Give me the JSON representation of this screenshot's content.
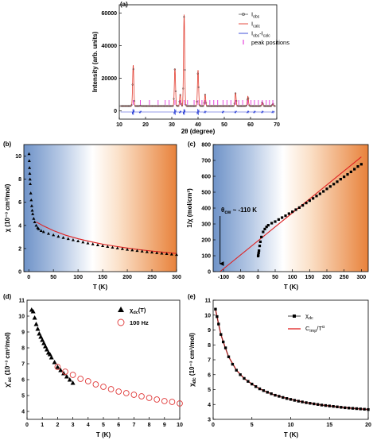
{
  "chart_data": [
    {
      "panel": "(a)",
      "type": "line",
      "xlabel": "2θ (degree)",
      "ylabel": "Intensity (arb. units)",
      "xlim": [
        10,
        70
      ],
      "ylim": [
        -5000,
        65000
      ],
      "xticks": [
        "10",
        "20",
        "30",
        "40",
        "50",
        "60",
        "70"
      ],
      "yticks": [
        "0",
        "20000",
        "40000",
        "60000"
      ],
      "legend": [
        "I_obs",
        "I_calc",
        "I_obs-I_calc",
        "peak positions"
      ],
      "legend_display": {
        "obs": "I",
        "obs_sub": "obs",
        "calc": "I",
        "calc_sub": "calc",
        "diff": "I",
        "diff_sub": "obs",
        "diff_tail": "-I",
        "diff_sub2": "calc",
        "peaks": "peak positions"
      },
      "legend_position": "top-right",
      "peaks": [
        {
          "x": 15.3,
          "y": 28000
        },
        {
          "x": 18.0,
          "y": 3200
        },
        {
          "x": 31.2,
          "y": 26000
        },
        {
          "x": 33.2,
          "y": 10000
        },
        {
          "x": 34.7,
          "y": 59000
        },
        {
          "x": 40.0,
          "y": 25000
        },
        {
          "x": 42.7,
          "y": 10000
        },
        {
          "x": 49.5,
          "y": 3000
        },
        {
          "x": 54.3,
          "y": 11000
        },
        {
          "x": 59.0,
          "y": 9000
        },
        {
          "x": 61.5,
          "y": 3000
        },
        {
          "x": 64.5,
          "y": 5500
        },
        {
          "x": 68.5,
          "y": 4500
        }
      ],
      "background": 3000,
      "bragg_positions": [
        15.3,
        18.0,
        21.5,
        24.8,
        27.5,
        29.0,
        31.2,
        33.2,
        34.7,
        36.0,
        38.5,
        40.0,
        41.5,
        42.7,
        44.5,
        46.0,
        47.5,
        49.5,
        51.0,
        52.5,
        54.3,
        55.5,
        57.0,
        59.0,
        60.2,
        61.5,
        63.0,
        64.5,
        66.0,
        67.2,
        68.5
      ]
    },
    {
      "panel": "(b)",
      "type": "scatter",
      "xlabel": "T (K)",
      "ylabel": "χ (10⁻³ cm³/mol)",
      "xlim": [
        -10,
        300
      ],
      "ylim": [
        0,
        11
      ],
      "xticks": [
        "0",
        "50",
        "100",
        "150",
        "200",
        "250",
        "300"
      ],
      "yticks": [
        "0",
        "2",
        "4",
        "6",
        "8",
        "10"
      ],
      "background": "blue-to-orange gradient",
      "series": [
        {
          "kind": "data",
          "x": [
            0.5,
            1,
            1.5,
            2,
            2.5,
            3,
            4,
            5,
            6,
            7,
            8,
            10,
            12,
            15,
            18,
            20,
            25,
            30,
            40,
            50,
            60,
            70,
            80,
            90,
            100,
            110,
            120,
            130,
            140,
            150,
            160,
            170,
            180,
            190,
            200,
            210,
            220,
            230,
            240,
            250,
            260,
            270,
            280,
            290,
            300
          ],
          "y": [
            10.2,
            9.6,
            9.0,
            8.5,
            8.0,
            7.6,
            6.8,
            6.2,
            5.7,
            5.3,
            5.0,
            4.6,
            4.3,
            4.0,
            3.8,
            3.7,
            3.55,
            3.45,
            3.3,
            3.18,
            3.05,
            2.95,
            2.85,
            2.75,
            2.65,
            2.56,
            2.47,
            2.39,
            2.31,
            2.24,
            2.17,
            2.1,
            2.04,
            1.98,
            1.92,
            1.87,
            1.82,
            1.77,
            1.72,
            1.68,
            1.63,
            1.59,
            1.55,
            1.51,
            1.48
          ]
        },
        {
          "kind": "fit",
          "x": [
            15,
            30,
            50,
            75,
            100,
            125,
            150,
            175,
            200,
            225,
            250,
            275,
            300
          ],
          "y": [
            4.3,
            3.95,
            3.55,
            3.15,
            2.85,
            2.6,
            2.38,
            2.2,
            2.04,
            1.9,
            1.78,
            1.67,
            1.57
          ]
        }
      ]
    },
    {
      "panel": "(c)",
      "type": "scatter",
      "xlabel": "T (K)",
      "ylabel": "1/χ (mol/cm³)",
      "xlim": [
        -130,
        320
      ],
      "ylim": [
        0,
        800
      ],
      "xticks": [
        "-100",
        "-50",
        "0",
        "50",
        "100",
        "150",
        "200",
        "250",
        "300"
      ],
      "yticks": [
        "0",
        "100",
        "200",
        "300",
        "400",
        "500",
        "600",
        "700",
        "800"
      ],
      "annotation": {
        "text": "θ",
        "sub": "cw",
        "tail": " ~ -110 K",
        "arrow_x": -110
      },
      "background": "blue-to-orange gradient",
      "series": [
        {
          "kind": "data",
          "x": [
            0.5,
            1,
            2,
            3,
            5,
            7,
            10,
            15,
            20,
            25,
            30,
            40,
            50,
            60,
            70,
            80,
            90,
            100,
            110,
            120,
            130,
            140,
            150,
            160,
            170,
            180,
            190,
            200,
            210,
            220,
            230,
            240,
            250,
            260,
            270,
            280,
            290,
            300
          ],
          "y": [
            98,
            104,
            118,
            132,
            162,
            188,
            218,
            250,
            268,
            282,
            292,
            305,
            315,
            328,
            340,
            352,
            365,
            377,
            390,
            403,
            417,
            432,
            447,
            461,
            476,
            490,
            505,
            521,
            536,
            551,
            566,
            582,
            597,
            612,
            628,
            645,
            662,
            676
          ]
        },
        {
          "kind": "fit",
          "x": [
            -110,
            300
          ],
          "y": [
            0,
            722
          ]
        }
      ]
    },
    {
      "panel": "(d)",
      "type": "scatter",
      "xlabel": "T (K)",
      "ylabel": "χ'ac (10⁻³ cm³/mol)",
      "ylabel_parts": {
        "main": "χ'",
        "sub": "ac",
        "tail": " (10⁻³ cm³/mol)"
      },
      "xlim": [
        0,
        10
      ],
      "ylim": [
        3.5,
        11
      ],
      "xticks": [
        "0",
        "1",
        "2",
        "3",
        "4",
        "5",
        "6",
        "7",
        "8",
        "9",
        "10"
      ],
      "yticks": [
        "4",
        "5",
        "6",
        "7",
        "8",
        "9",
        "10",
        "11"
      ],
      "legend": [
        "χdc(T)",
        "100 Hz"
      ],
      "legend_display": {
        "s1": "χ",
        "s1_sub": "dc",
        "s1_tail": "(T)",
        "s2": "100 Hz"
      },
      "legend_position": "top-right",
      "series": [
        {
          "name": "χdc(T)",
          "marker": "triangle",
          "x": [
            0.3,
            0.4,
            0.5,
            0.6,
            0.7,
            0.8,
            0.9,
            1.0,
            1.1,
            1.2,
            1.3,
            1.4,
            1.5,
            1.6,
            1.8,
            2.0,
            2.2,
            2.4,
            2.6,
            2.8,
            3.0
          ],
          "y": [
            10.4,
            10.3,
            9.9,
            9.5,
            9.2,
            8.9,
            8.7,
            8.5,
            8.3,
            8.1,
            7.9,
            7.7,
            7.6,
            7.4,
            7.1,
            6.8,
            6.6,
            6.4,
            6.2,
            6.0,
            5.8
          ]
        },
        {
          "name": "100 Hz",
          "marker": "circle",
          "x": [
            2.0,
            2.5,
            3.0,
            3.5,
            4.0,
            4.5,
            5.0,
            5.5,
            6.0,
            6.5,
            7.0,
            7.5,
            8.0,
            8.5,
            9.0,
            9.5,
            10.0
          ],
          "y": [
            6.8,
            6.5,
            6.3,
            6.05,
            5.9,
            5.7,
            5.55,
            5.4,
            5.25,
            5.15,
            5.05,
            4.95,
            4.85,
            4.75,
            4.65,
            4.6,
            4.5
          ]
        }
      ]
    },
    {
      "panel": "(e)",
      "type": "scatter",
      "xlabel": "T (K)",
      "ylabel": "χdc (10⁻³ cm³/mol)",
      "ylabel_parts": {
        "main": "χ",
        "sub": "dc",
        "tail": " (10⁻³ cm³/mol)"
      },
      "xlim": [
        0,
        20
      ],
      "ylim": [
        3,
        11
      ],
      "xticks": [
        "0",
        "5",
        "10",
        "15",
        "20"
      ],
      "yticks": [
        "3",
        "4",
        "5",
        "6",
        "7",
        "8",
        "9",
        "10",
        "11"
      ],
      "legend": [
        "χdc",
        "Cimp/T^α"
      ],
      "legend_display": {
        "s1": "χ",
        "s1_sub": "dc",
        "s2": "C",
        "s2_sub": "imp",
        "s2_tail": "/T",
        "s2_sup": "α"
      },
      "legend_position": "top-right",
      "series": [
        {
          "name": "χdc",
          "marker": "square",
          "x": [
            0.3,
            0.5,
            0.7,
            1,
            1.3,
            1.6,
            2,
            2.5,
            3,
            3.5,
            4,
            4.5,
            5,
            5.5,
            6,
            6.5,
            7,
            7.5,
            8,
            8.5,
            9,
            9.5,
            10,
            10.5,
            11,
            11.5,
            12,
            12.5,
            13,
            13.5,
            14,
            14.5,
            15,
            15.5,
            16,
            16.5,
            17,
            17.5,
            18,
            18.5,
            19,
            19.5,
            20
          ],
          "y": [
            10.4,
            9.9,
            9.4,
            8.7,
            8.2,
            7.8,
            7.2,
            6.7,
            6.3,
            6.0,
            5.75,
            5.55,
            5.37,
            5.2,
            5.05,
            4.93,
            4.82,
            4.72,
            4.62,
            4.55,
            4.47,
            4.4,
            4.34,
            4.28,
            4.22,
            4.17,
            4.12,
            4.08,
            4.04,
            4.0,
            3.96,
            3.93,
            3.9,
            3.87,
            3.84,
            3.81,
            3.78,
            3.76,
            3.74,
            3.72,
            3.7,
            3.68,
            3.66
          ]
        },
        {
          "name": "Cimp/T^α",
          "marker": "line",
          "x": [
            0.3,
            0.5,
            0.7,
            1,
            1.5,
            2,
            3,
            4,
            5,
            6,
            7,
            8,
            10,
            12,
            14,
            16,
            18,
            20
          ],
          "y": [
            10.4,
            9.9,
            9.4,
            8.7,
            7.9,
            7.2,
            6.3,
            5.75,
            5.37,
            5.05,
            4.82,
            4.62,
            4.34,
            4.12,
            3.96,
            3.84,
            3.74,
            3.66
          ]
        }
      ]
    }
  ]
}
